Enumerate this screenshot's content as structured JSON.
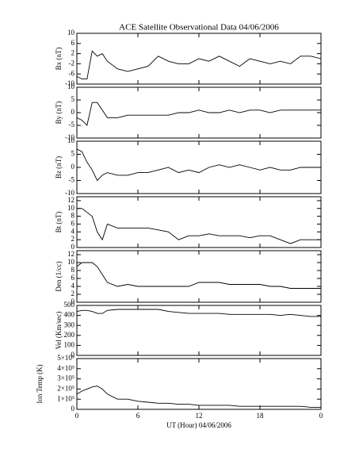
{
  "chart_data": [
    {
      "type": "line",
      "title": "ACE Satellite Observational Data   04/06/2006",
      "ylabel": "Bx (nT)",
      "color": "#000000",
      "x": [
        0,
        0.5,
        1,
        1.5,
        2,
        2.5,
        3,
        4,
        5,
        6,
        7,
        8,
        9,
        10,
        11,
        12,
        13,
        14,
        15,
        16,
        17,
        18,
        19,
        20,
        21,
        22,
        23,
        24
      ],
      "values": [
        -7,
        -8,
        -8,
        3,
        1,
        2,
        -1,
        -4,
        -5,
        -4,
        -3,
        1,
        -1,
        -2,
        -2,
        0,
        -1,
        1,
        -1,
        -3,
        0,
        -1,
        -2,
        -1,
        -2,
        1,
        1,
        0
      ],
      "xlim": [
        0,
        24
      ],
      "ylim": [
        -10,
        10
      ],
      "yticks": [
        -10,
        -6,
        -2,
        2,
        6,
        10
      ]
    },
    {
      "type": "line",
      "ylabel": "By (nT)",
      "color": "#000000",
      "x": [
        0,
        0.5,
        1,
        1.5,
        2,
        2.5,
        3,
        4,
        5,
        6,
        7,
        8,
        9,
        10,
        11,
        12,
        13,
        14,
        15,
        16,
        17,
        18,
        19,
        20,
        21,
        22,
        23,
        24
      ],
      "values": [
        -2,
        -3,
        -5,
        4,
        4,
        1,
        -2,
        -2,
        -1,
        -1,
        -1,
        -1,
        -1,
        0,
        0,
        1,
        0,
        0,
        1,
        0,
        1,
        1,
        0,
        1,
        1,
        1,
        1,
        1
      ],
      "xlim": [
        0,
        24
      ],
      "ylim": [
        -10,
        10
      ],
      "yticks": [
        -10,
        -5,
        0,
        5,
        10
      ]
    },
    {
      "type": "line",
      "ylabel": "Bz (nT)",
      "color": "#000000",
      "x": [
        0,
        0.5,
        1,
        1.5,
        2,
        2.5,
        3,
        4,
        5,
        6,
        7,
        8,
        9,
        10,
        11,
        12,
        13,
        14,
        15,
        16,
        17,
        18,
        19,
        20,
        21,
        22,
        23,
        24
      ],
      "values": [
        7,
        6,
        2,
        -1,
        -5,
        -3,
        -2,
        -3,
        -3,
        -2,
        -2,
        -1,
        0,
        -2,
        -1,
        -2,
        0,
        1,
        0,
        1,
        0,
        -1,
        0,
        -1,
        -1,
        0,
        0,
        0
      ],
      "xlim": [
        0,
        24
      ],
      "ylim": [
        -10,
        10
      ],
      "yticks": [
        -10,
        -5,
        0,
        5,
        10
      ]
    },
    {
      "type": "line",
      "ylabel": "Bt (nT)",
      "color": "#000000",
      "x": [
        0,
        0.5,
        1,
        1.5,
        2,
        2.5,
        3,
        4,
        5,
        6,
        7,
        8,
        9,
        10,
        11,
        12,
        13,
        14,
        15,
        16,
        17,
        18,
        19,
        20,
        21,
        22,
        23,
        24
      ],
      "values": [
        10,
        10,
        9,
        8,
        4,
        2,
        6,
        5,
        5,
        5,
        5,
        4.5,
        4,
        2,
        3,
        3,
        3.5,
        3,
        3,
        3,
        2.5,
        3,
        3,
        2,
        1,
        2,
        2,
        2
      ],
      "xlim": [
        0,
        24
      ],
      "ylim": [
        0,
        13
      ],
      "yticks": [
        0,
        2,
        4,
        6,
        8,
        10,
        12
      ]
    },
    {
      "type": "line",
      "ylabel": "Den (1/cc)",
      "color": "#000000",
      "x": [
        0,
        0.5,
        1,
        1.5,
        2,
        2.5,
        3,
        4,
        5,
        6,
        7,
        8,
        9,
        10,
        11,
        12,
        13,
        14,
        15,
        16,
        17,
        18,
        19,
        20,
        21,
        22,
        23,
        24
      ],
      "values": [
        9,
        10,
        10,
        10,
        9,
        7,
        5,
        4,
        4.5,
        4,
        4,
        4,
        4,
        4,
        4,
        5,
        5,
        5,
        4.5,
        4.5,
        4.5,
        4.5,
        4,
        4,
        3.5,
        3.5,
        3.5,
        3.5
      ],
      "xlim": [
        0,
        24
      ],
      "ylim": [
        0,
        13
      ],
      "yticks": [
        0,
        2,
        4,
        6,
        8,
        10,
        12
      ]
    },
    {
      "type": "line",
      "ylabel": "Vel (Km/sec)",
      "color": "#000000",
      "x": [
        0,
        0.5,
        1,
        1.5,
        2,
        2.5,
        3,
        4,
        5,
        6,
        7,
        8,
        9,
        10,
        11,
        12,
        13,
        14,
        15,
        16,
        17,
        18,
        19,
        20,
        21,
        22,
        23,
        24
      ],
      "values": [
        440,
        450,
        450,
        440,
        420,
        420,
        450,
        460,
        460,
        460,
        460,
        460,
        440,
        430,
        420,
        420,
        420,
        420,
        410,
        410,
        410,
        410,
        410,
        400,
        410,
        400,
        390,
        390
      ],
      "xlim": [
        0,
        24
      ],
      "ylim": [
        0,
        500
      ],
      "yticks": [
        0,
        100,
        200,
        300,
        400,
        500
      ]
    },
    {
      "type": "line",
      "ylabel": "Ion Temp (K)",
      "xlabel": "UT (Hour)  04/06/2006",
      "color": "#000000",
      "x": [
        0,
        0.5,
        1,
        1.5,
        2,
        2.5,
        3,
        4,
        5,
        6,
        7,
        8,
        9,
        10,
        11,
        12,
        13,
        14,
        15,
        16,
        17,
        18,
        19,
        20,
        21,
        22,
        23,
        24
      ],
      "values": [
        150000,
        180000,
        200000,
        220000,
        230000,
        200000,
        150000,
        100000,
        100000,
        80000,
        70000,
        60000,
        60000,
        50000,
        50000,
        40000,
        40000,
        40000,
        40000,
        30000,
        30000,
        30000,
        30000,
        30000,
        30000,
        30000,
        20000,
        20000
      ],
      "xlim": [
        0,
        24
      ],
      "ylim": [
        0,
        500000
      ],
      "yticks": [
        0,
        {
          "value": 100000,
          "label": "1×10⁵"
        },
        {
          "value": 200000,
          "label": "2×10⁵"
        },
        {
          "value": 300000,
          "label": "3×10⁵"
        },
        {
          "value": 400000,
          "label": "4×10⁵"
        },
        {
          "value": 500000,
          "label": "5×10⁵"
        }
      ],
      "xticks": [
        0,
        6,
        12,
        18,
        {
          "value": 24,
          "label": "0"
        }
      ]
    }
  ]
}
